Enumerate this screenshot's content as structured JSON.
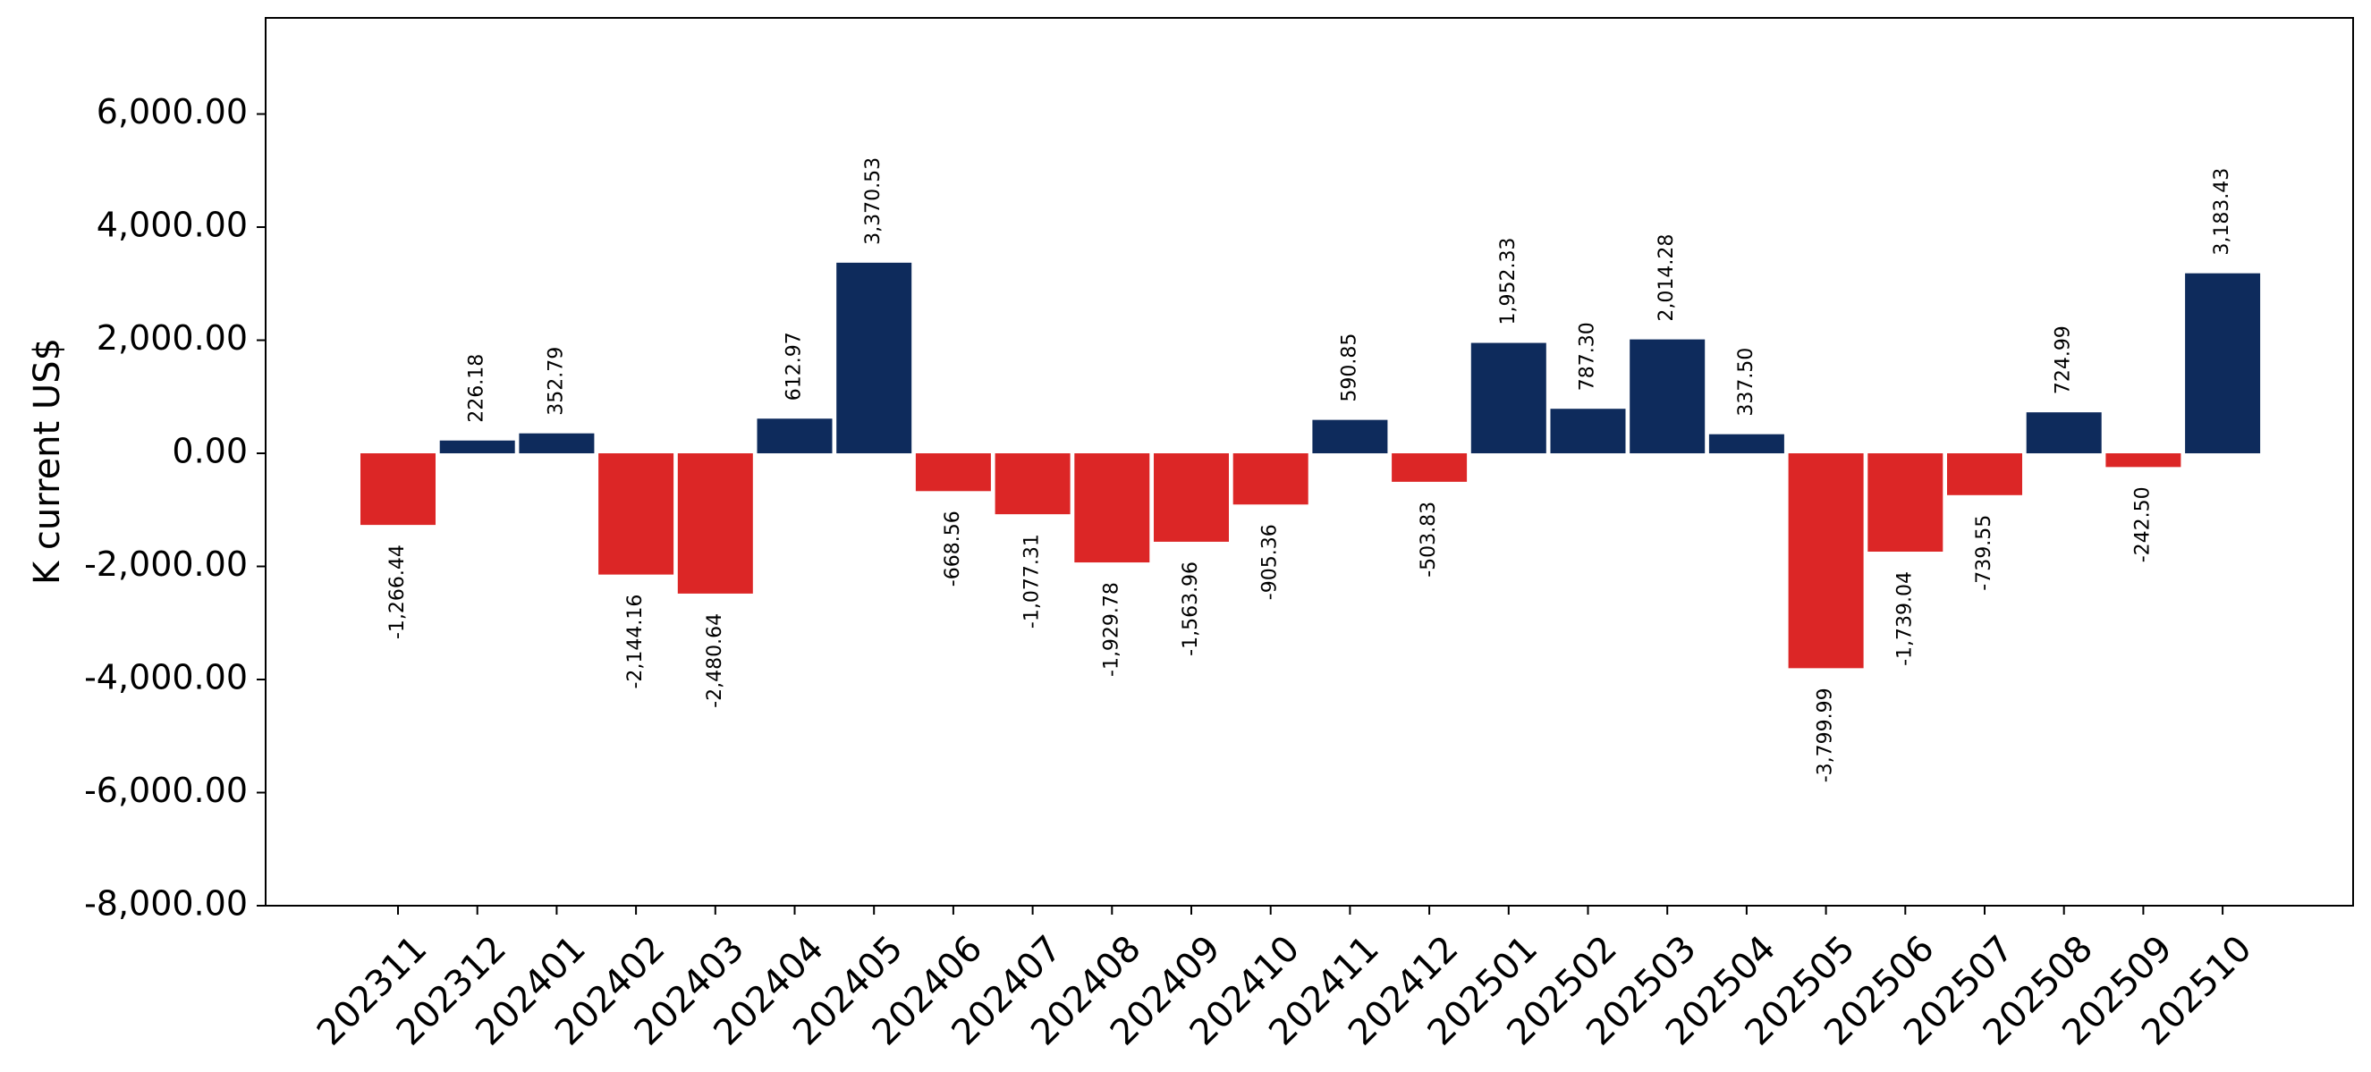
{
  "chart_data": {
    "type": "bar",
    "title": "",
    "xlabel": "",
    "ylabel": "K current US$",
    "ylim": [
      -8000,
      7700
    ],
    "yticks": [
      -8000,
      -6000,
      -4000,
      -2000,
      0,
      2000,
      4000,
      6000
    ],
    "ytick_labels": [
      "-8,000.00",
      "-6,000.00",
      "-4,000.00",
      "-2,000.00",
      "0.00",
      "2,000.00",
      "4,000.00",
      "6,000.00"
    ],
    "categories": [
      "202311",
      "202312",
      "202401",
      "202402",
      "202403",
      "202404",
      "202405",
      "202406",
      "202407",
      "202408",
      "202409",
      "202410",
      "202411",
      "202412",
      "202501",
      "202502",
      "202503",
      "202504",
      "202505",
      "202506",
      "202507",
      "202508",
      "202509",
      "202510"
    ],
    "values": [
      -1266.44,
      226.18,
      352.79,
      -2144.16,
      -2480.64,
      612.97,
      3370.53,
      -668.56,
      -1077.31,
      -1929.78,
      -1563.96,
      -905.36,
      590.85,
      -503.83,
      1952.33,
      787.3,
      2014.28,
      337.5,
      -3799.99,
      -1739.04,
      -739.55,
      724.99,
      -242.5,
      3183.43
    ],
    "value_labels": [
      "-1,266.44",
      "226.18",
      "352.79",
      "-2,144.16",
      "-2,480.64",
      "612.97",
      "3,370.53",
      "-668.56",
      "-1,077.31",
      "-1,929.78",
      "-1,563.96",
      "-905.36",
      "590.85",
      "-503.83",
      "1,952.33",
      "787.30",
      "2,014.28",
      "337.50",
      "-3,799.99",
      "-1,739.04",
      "-739.55",
      "724.99",
      "-242.50",
      "3,183.43"
    ],
    "colors": {
      "positive": "#0e2b5c",
      "negative": "#dc2626"
    },
    "grid": false,
    "legend": "none"
  }
}
